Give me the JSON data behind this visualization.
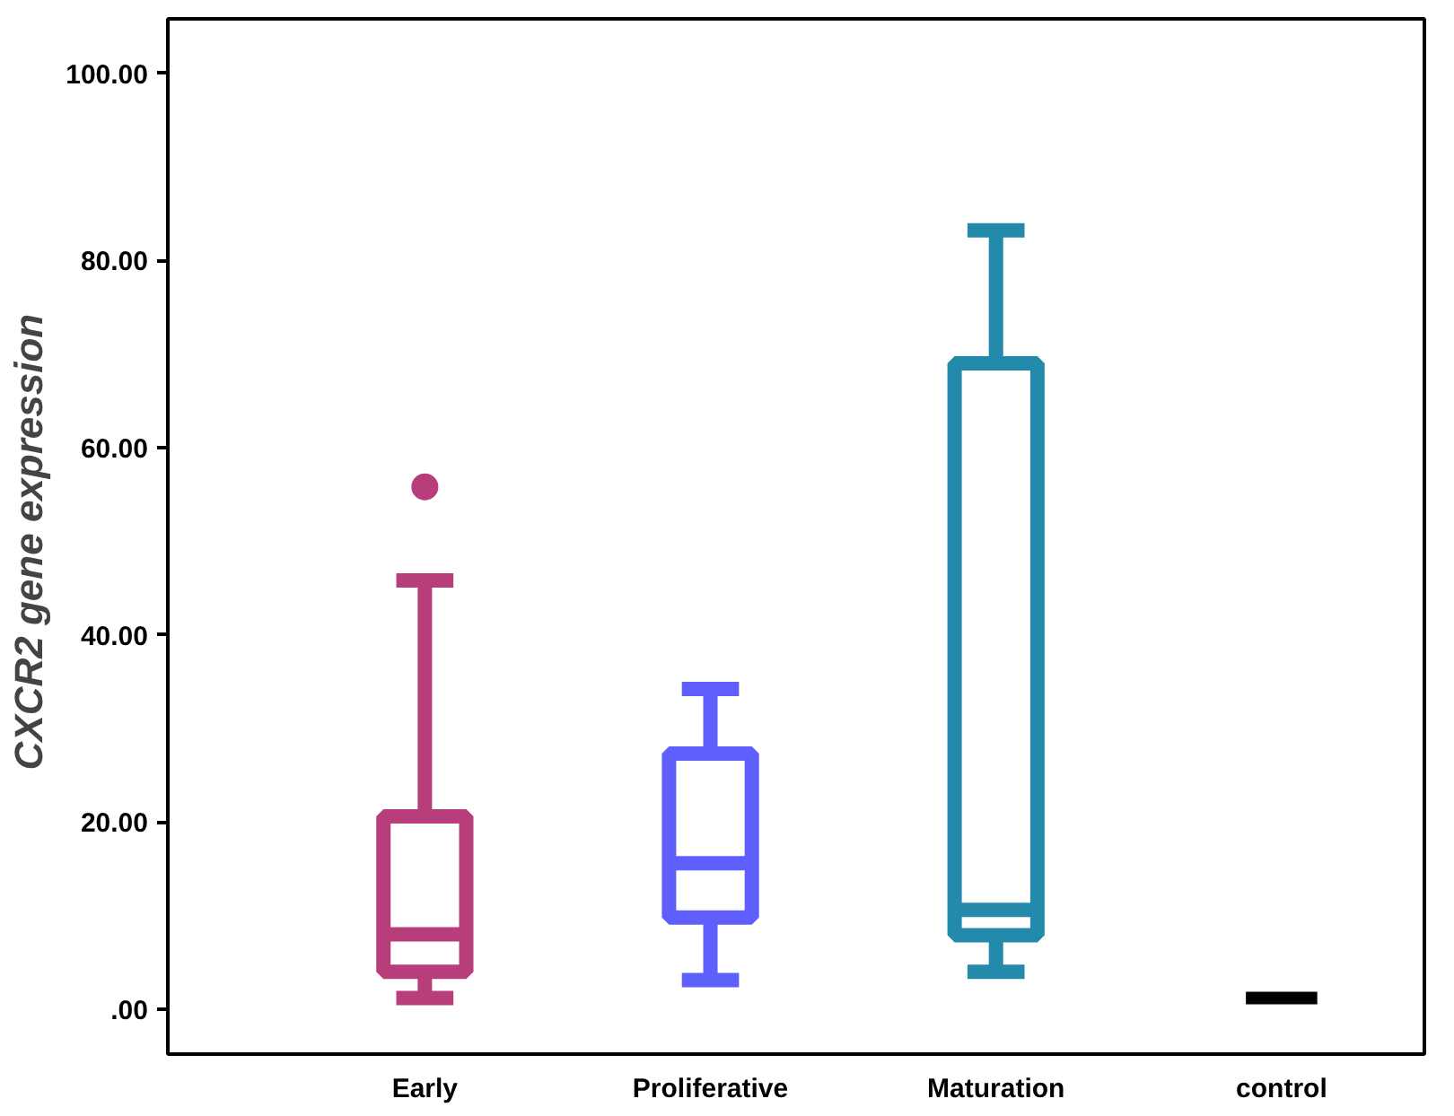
{
  "chart_data": {
    "type": "box",
    "ylabel": "CXCR2  gene expression",
    "categories": [
      "Early",
      "Proliferative",
      "Maturation",
      "control"
    ],
    "colors": [
      "#b83d7b",
      "#5f5ffd",
      "#248aab",
      "#000000"
    ],
    "boxes": [
      {
        "low": 1.2,
        "q1": 4.0,
        "median": 8.0,
        "q3": 20.6,
        "high": 45.8,
        "outliers": [
          55.8
        ]
      },
      {
        "low": 3.1,
        "q1": 9.8,
        "median": 15.6,
        "q3": 27.3,
        "high": 34.2
      },
      {
        "low": 4.0,
        "q1": 7.9,
        "median": 10.6,
        "q3": 69.0,
        "high": 83.2
      },
      {
        "low": 1.2,
        "q1": 1.2,
        "median": 1.2,
        "q3": 1.2,
        "high": 1.2
      }
    ],
    "ylim": [
      -4.8,
      105.8
    ],
    "yticks": [
      {
        "value": 0,
        "label": ".00"
      },
      {
        "value": 20,
        "label": "20.00"
      },
      {
        "value": 40,
        "label": "40.00"
      },
      {
        "value": 60,
        "label": "60.00"
      },
      {
        "value": 80,
        "label": "80.00"
      },
      {
        "value": 100,
        "label": "100.00"
      }
    ],
    "grid": false
  }
}
